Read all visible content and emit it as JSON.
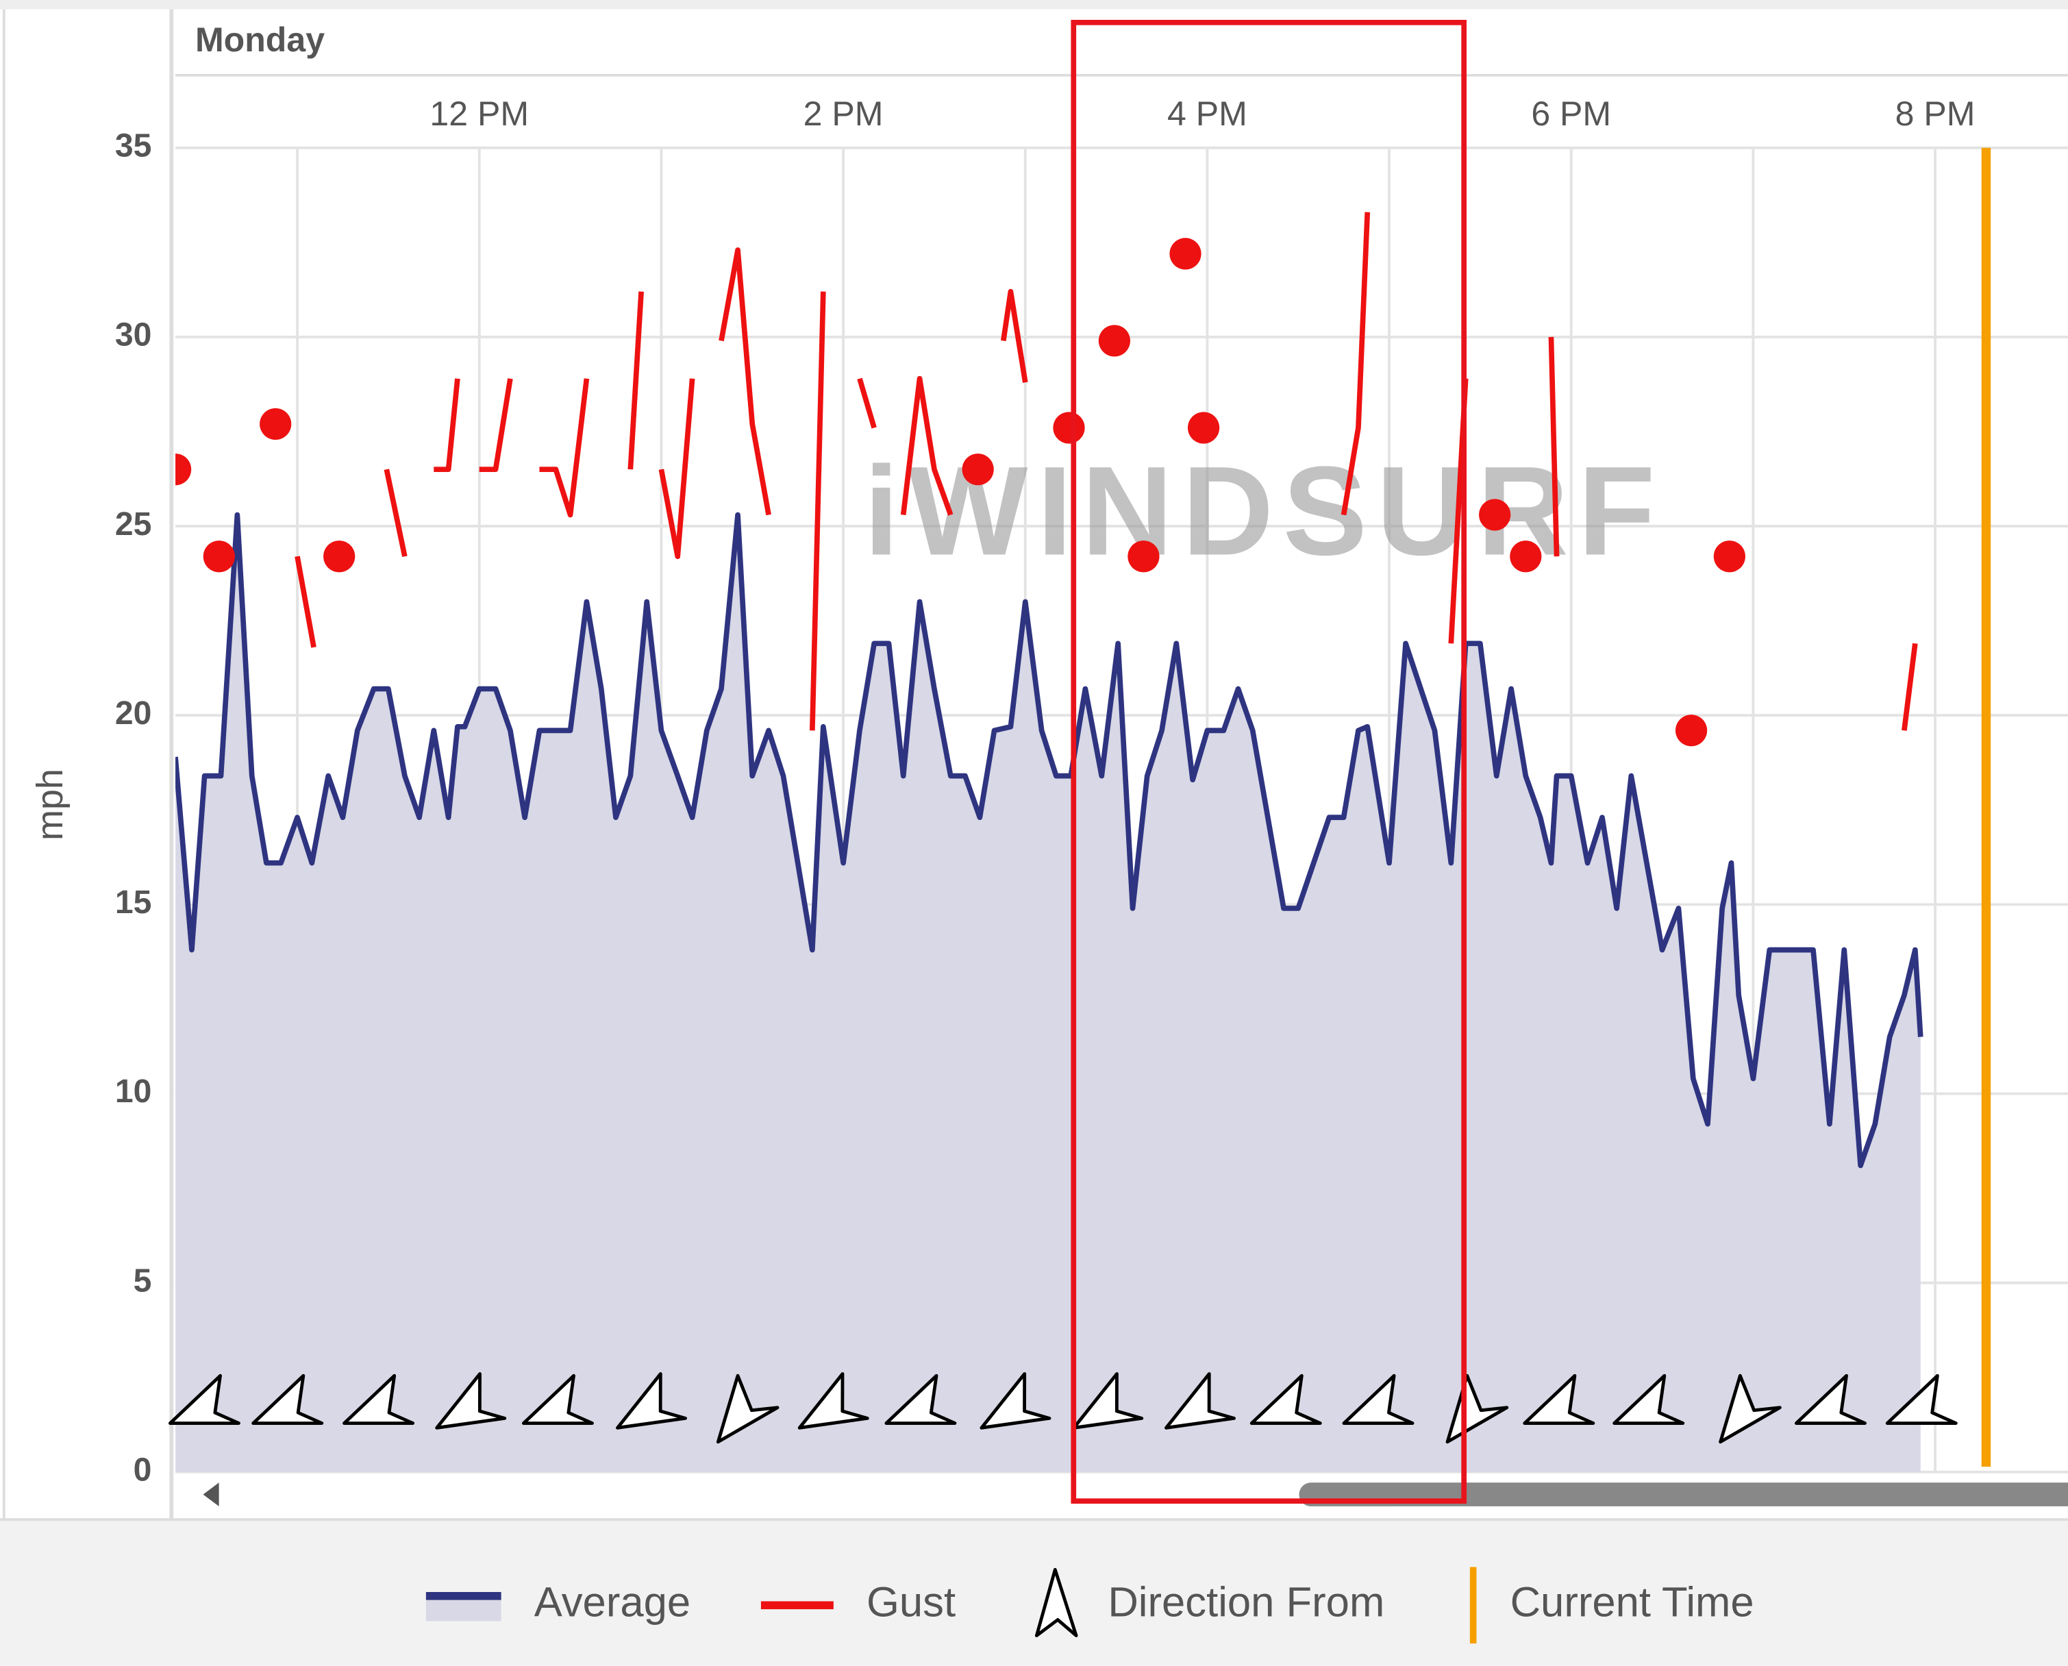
{
  "chart_data": {
    "type": "line",
    "day_label": "Monday",
    "y_label": "mph",
    "watermark": "iWINDSURF",
    "xlim": [
      10.33,
      20.73
    ],
    "xticks": [
      {
        "value": 12,
        "label": "12 PM"
      },
      {
        "value": 14,
        "label": "2 PM"
      },
      {
        "value": 16,
        "label": "4 PM"
      },
      {
        "value": 18,
        "label": "6 PM"
      },
      {
        "value": 20,
        "label": "8 PM"
      }
    ],
    "x_minor_ticks": [
      11,
      13,
      15,
      17,
      19
    ],
    "ylim": [
      0,
      35
    ],
    "yticks": [
      0,
      5,
      10,
      15,
      20,
      25,
      30,
      35
    ],
    "grid": true,
    "x": [
      10.33,
      10.42,
      10.49,
      10.58,
      10.67,
      10.75,
      10.83,
      10.91,
      11.0,
      11.08,
      11.17,
      11.25,
      11.33,
      11.42,
      11.5,
      11.59,
      11.67,
      11.75,
      11.83,
      11.88,
      11.92,
      12.0,
      12.09,
      12.17,
      12.25,
      12.33,
      12.5,
      12.59,
      12.67,
      12.75,
      12.83,
      12.92,
      13.0,
      13.09,
      13.17,
      13.25,
      13.33,
      13.42,
      13.5,
      13.59,
      13.67,
      13.83,
      13.89,
      14.0,
      14.09,
      14.17,
      14.25,
      14.33,
      14.42,
      14.5,
      14.59,
      14.67,
      14.75,
      14.83,
      14.92,
      15.0,
      15.09,
      15.17,
      15.25,
      15.33,
      15.42,
      15.51,
      15.59,
      15.67,
      15.75,
      15.83,
      15.92,
      16.0,
      16.09,
      16.17,
      16.25,
      16.42,
      16.5,
      16.67,
      16.75,
      16.83,
      16.88,
      17.0,
      17.09,
      17.25,
      17.34,
      17.42,
      17.5,
      17.59,
      17.67,
      17.75,
      17.83,
      17.89,
      17.92,
      18.0,
      18.09,
      18.17,
      18.25,
      18.33,
      18.5,
      18.59,
      18.67,
      18.75,
      18.83,
      18.88,
      18.92,
      19.0,
      19.09,
      19.33,
      19.42,
      19.5,
      19.59,
      19.67,
      19.75,
      19.83,
      19.89,
      19.92
    ],
    "series": [
      {
        "name": "Average",
        "color": "#2e3480",
        "fill": "#d8d8e6",
        "values": [
          18.9,
          13.8,
          18.4,
          18.4,
          25.3,
          18.4,
          16.1,
          16.1,
          17.3,
          16.1,
          18.4,
          17.3,
          19.6,
          20.7,
          20.7,
          18.4,
          17.3,
          19.6,
          17.3,
          19.7,
          19.7,
          20.7,
          20.7,
          19.6,
          17.3,
          19.6,
          19.6,
          23.0,
          20.7,
          17.3,
          18.4,
          23.0,
          19.6,
          18.4,
          17.3,
          19.6,
          20.7,
          25.3,
          18.4,
          19.6,
          18.4,
          13.8,
          19.7,
          16.1,
          19.6,
          21.9,
          21.9,
          18.4,
          23.0,
          20.7,
          18.4,
          18.4,
          17.3,
          19.6,
          19.7,
          23.0,
          19.6,
          18.4,
          18.4,
          20.7,
          18.4,
          21.9,
          14.9,
          18.4,
          19.6,
          21.9,
          18.3,
          19.6,
          19.6,
          20.7,
          19.6,
          14.9,
          14.9,
          17.3,
          17.3,
          19.6,
          19.7,
          16.1,
          21.9,
          19.6,
          16.1,
          21.9,
          21.9,
          18.4,
          20.7,
          18.4,
          17.3,
          16.1,
          18.4,
          18.4,
          16.1,
          17.3,
          14.9,
          18.4,
          13.8,
          14.9,
          10.4,
          9.2,
          14.9,
          16.1,
          12.6,
          10.4,
          13.8,
          13.8,
          9.2,
          13.8,
          8.1,
          9.2,
          11.5,
          12.6,
          13.8,
          11.5
        ]
      },
      {
        "name": "Gust",
        "color": "#ee1111",
        "x": [
          10.33,
          null,
          10.57,
          null,
          10.88,
          null,
          11.0,
          11.09,
          null,
          11.23,
          null,
          11.49,
          11.59,
          null,
          11.75,
          11.83,
          11.88,
          null,
          12.0,
          12.09,
          12.17,
          null,
          12.33,
          12.42,
          12.5,
          12.59,
          null,
          12.83,
          12.89,
          null,
          13.0,
          13.09,
          13.17,
          null,
          13.33,
          13.42,
          13.5,
          13.59,
          null,
          13.83,
          13.89,
          null,
          14.09,
          14.17,
          null,
          14.33,
          14.42,
          14.5,
          14.59,
          null,
          14.74,
          null,
          14.88,
          14.92,
          15.0,
          null,
          15.24,
          null,
          15.49,
          null,
          15.65,
          null,
          15.88,
          null,
          15.98,
          null,
          16.75,
          16.83,
          16.88,
          null,
          17.34,
          17.42,
          null,
          17.58,
          null,
          17.75,
          null,
          17.89,
          17.92,
          null,
          18.66,
          null,
          18.87,
          null,
          19.83,
          19.89
        ],
        "values": [
          26.5,
          null,
          24.2,
          null,
          27.7,
          null,
          24.2,
          21.8,
          null,
          24.2,
          null,
          26.5,
          24.2,
          null,
          26.5,
          26.5,
          28.9,
          null,
          26.5,
          26.5,
          28.9,
          null,
          26.5,
          26.5,
          25.3,
          28.9,
          null,
          26.5,
          31.2,
          null,
          26.5,
          24.2,
          28.9,
          null,
          29.9,
          32.3,
          27.7,
          25.3,
          null,
          19.6,
          31.2,
          null,
          28.9,
          27.6,
          null,
          25.3,
          28.9,
          26.5,
          25.3,
          null,
          26.5,
          null,
          29.9,
          31.2,
          28.8,
          null,
          27.6,
          null,
          29.9,
          null,
          24.2,
          null,
          32.2,
          null,
          27.6,
          null,
          25.3,
          27.6,
          33.3,
          null,
          21.9,
          28.9,
          null,
          25.3,
          null,
          24.2,
          null,
          30.0,
          24.2,
          null,
          19.6,
          null,
          24.2,
          null,
          19.6,
          21.9
        ]
      }
    ],
    "direction": {
      "name": "Direction From"
    },
    "current_time_marker": {
      "name": "Current Time",
      "x": 20.28,
      "color": "#f5a000"
    }
  }
}
